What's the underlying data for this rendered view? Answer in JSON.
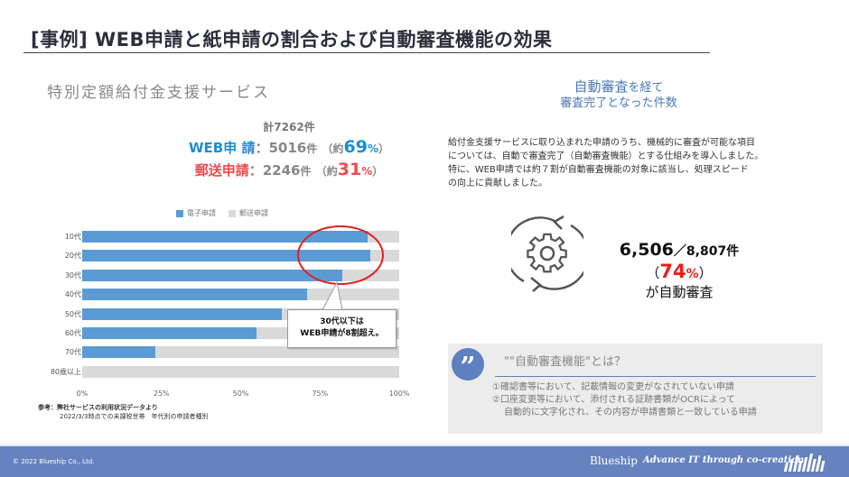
{
  "header": {
    "title": "[事例] WEB申請と紙申請の割合および自動審査機能の効果"
  },
  "left": {
    "service_name": "特別定額給付金支援サービス",
    "total": "計7262件",
    "web": {
      "label": "WEB申 請",
      "sep": "：",
      "count": "5016",
      "unit": "件",
      "pct_open": "（約",
      "pct": "69",
      "pct_unit": "%",
      "pct_close": "）"
    },
    "post": {
      "label": "郵送申請",
      "sep": "：",
      "count": "2246",
      "unit": "件",
      "pct_open": "（約",
      "pct": "31",
      "pct_unit": "%",
      "pct_close": "）"
    },
    "callout": {
      "line1": "30代以下は",
      "line2": "WEB申請が8割超え。"
    },
    "source": {
      "line1": "参考：弊社サービスの利用状況データより",
      "line2": "2022/3/3時点での未課税世帯　年代別の申請者種別"
    }
  },
  "chart_data": {
    "type": "bar",
    "orientation": "horizontal-stacked-100",
    "categories": [
      "10代",
      "20代",
      "30代",
      "40代",
      "50代",
      "60代",
      "70代",
      "80歳以上"
    ],
    "series": [
      {
        "name": "電子申請",
        "color": "#5b9bd5",
        "values": [
          90,
          91,
          82,
          71,
          63,
          55,
          23,
          0
        ]
      },
      {
        "name": "郵送申請",
        "color": "#d9d9d9",
        "values": [
          10,
          9,
          18,
          29,
          37,
          45,
          77,
          100
        ]
      }
    ],
    "xticks": [
      "0%",
      "25%",
      "50%",
      "75%",
      "100%"
    ],
    "xlim": [
      0,
      100
    ],
    "legend_position": "top",
    "grid": false
  },
  "right": {
    "heading_em": "自動審査",
    "heading_rest": "を経て",
    "heading_line2": "審査完了となった件数",
    "description": [
      "給付金支援サービスに取り込まれた申請のうち、機械的に審査が可能な項目",
      "については、自動で審査完了（自動審査機能）とする仕組みを導入しました。",
      "特に、WEB申請では約７割が自動審査機能の対象に該当し、処理スピード",
      "の向上に貢献しました。"
    ],
    "stat": {
      "auto": "6,506",
      "slash": "／",
      "total": "8,807件",
      "pct_open": "（",
      "pct": "74",
      "pct_unit": "%",
      "pct_close": "）",
      "label": "が自動審査"
    },
    "faq": {
      "title": "\"\"自動審査機能\"とは？",
      "items": [
        "①確認書等において、記載情報の変更がなされていない申請",
        "②口座変更等において、添付される証跡書類がOCRによって",
        "自動的に文字化され、その内容が申請書類と一致している申請"
      ]
    }
  },
  "footer": {
    "copyright": "© 2022  Blueship Co., Ltd.",
    "brand": "Blueship",
    "tagline": "Advance IT through co-creation"
  }
}
